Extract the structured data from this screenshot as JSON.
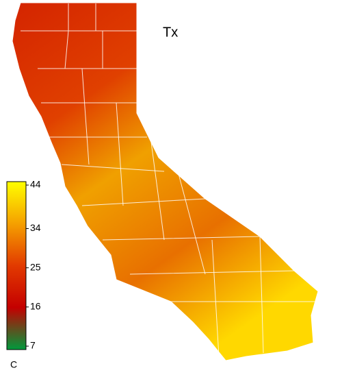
{
  "title": "Tx",
  "colorbar": {
    "lim": [
      7,
      44
    ],
    "ticks": [
      44,
      34,
      25,
      16,
      7
    ],
    "unit": "C",
    "colors": [
      "#009a3c",
      "#c40000",
      "#e23a00",
      "#f5a000",
      "#ffff00"
    ]
  }
}
